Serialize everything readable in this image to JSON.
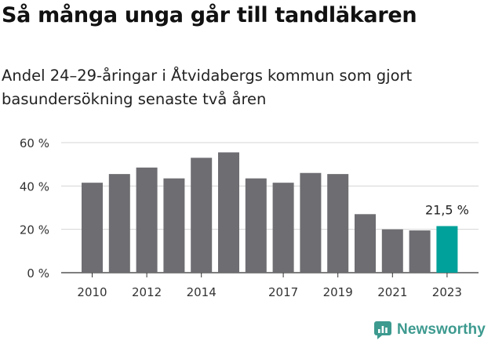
{
  "title": "Så många unga går till tandläkaren",
  "subtitle": "Andel 24–29-åringar i Åtvidabergs kommun som gjort basundersökning senaste två åren",
  "brand": {
    "name": "Newsworthy",
    "icon": "newsworthy-logo-icon",
    "color": "#3d9a8f"
  },
  "colors": {
    "bar": "#6e6d72",
    "highlight": "#00a19a",
    "grid": "#d4d4d4",
    "axis": "#333333"
  },
  "chart_data": {
    "type": "bar",
    "categories": [
      "2010",
      "2011",
      "2012",
      "2013",
      "2014",
      "2015",
      "2016",
      "2017",
      "2018",
      "2019",
      "2020",
      "2021",
      "2022",
      "2023"
    ],
    "values": [
      41.5,
      45.5,
      48.5,
      43.5,
      53,
      55.5,
      43.5,
      41.5,
      46,
      45.5,
      27,
      20,
      19.5,
      21.5
    ],
    "highlight_index": 13,
    "highlight_label": "21,5 %",
    "x_tick_labels": [
      "2010",
      "2012",
      "2014",
      "2017",
      "2019",
      "2021",
      "2023"
    ],
    "y_ticks": [
      0,
      20,
      40,
      60
    ],
    "y_tick_labels": [
      "0 %",
      "20 %",
      "40 %",
      "60 %"
    ],
    "ylim": [
      0,
      60
    ],
    "grid": true,
    "xlabel": "",
    "ylabel": ""
  }
}
